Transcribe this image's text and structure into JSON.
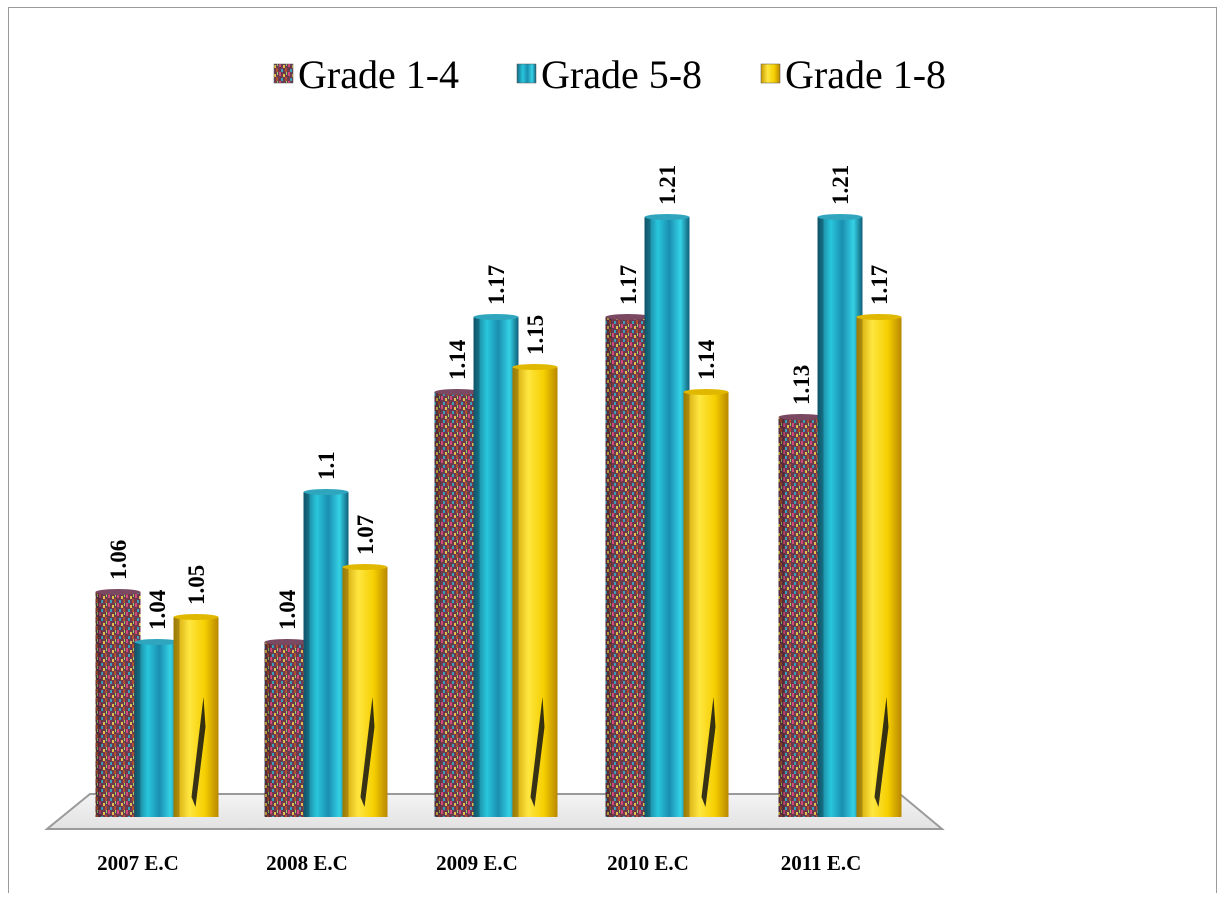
{
  "chart_data": {
    "type": "bar",
    "title": "",
    "xlabel": "",
    "ylabel": "",
    "ylim": [
      0.97,
      1.23
    ],
    "grid": false,
    "legend_position": "top",
    "categories": [
      "2007 E.C",
      "2008 E.C",
      "2009 E.C",
      "2010 E.C",
      "2011 E.C"
    ],
    "series": [
      {
        "name": "Grade 1-4",
        "values": [
          1.06,
          1.04,
          1.14,
          1.17,
          1.13
        ],
        "labels": [
          "1.06",
          "1.04",
          "1.14",
          "1.17",
          "1.13"
        ],
        "color": "#8a3a5a"
      },
      {
        "name": "Grade 5-8",
        "values": [
          1.04,
          1.1,
          1.17,
          1.21,
          1.21
        ],
        "labels": [
          "1.04",
          "1.1",
          "1.17",
          "1.21",
          "1.21"
        ],
        "color": "#1fb8cc"
      },
      {
        "name": "Grade 1-8",
        "values": [
          1.05,
          1.07,
          1.15,
          1.14,
          1.17
        ],
        "labels": [
          "1.05",
          "1.07",
          "1.15",
          "1.14",
          "1.17"
        ],
        "color": "#f2cc00"
      }
    ]
  }
}
